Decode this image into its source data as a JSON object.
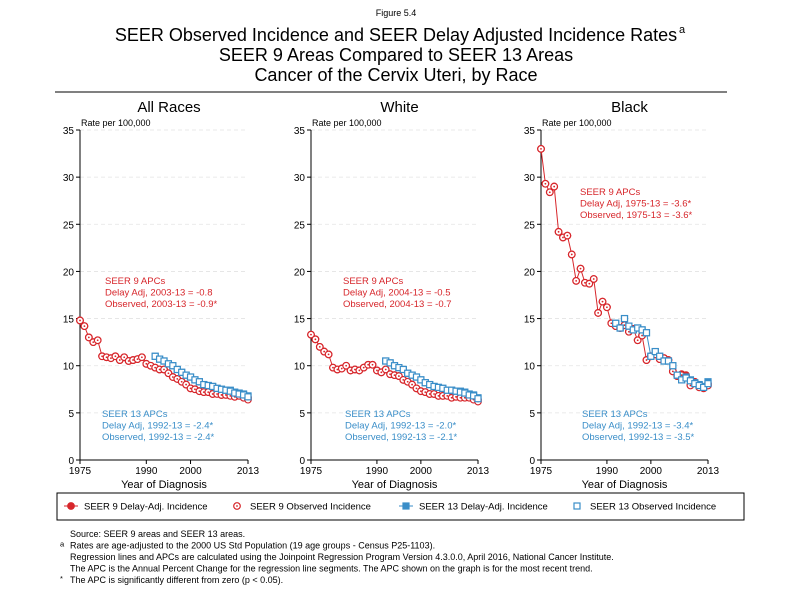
{
  "header": {
    "figure": "Figure 5.4",
    "title": [
      "SEER Observed Incidence and SEER Delay Adjusted Incidence Rates",
      "SEER 9 Areas Compared to SEER 13 Areas",
      "Cancer of the Cervix Uteri, by Race"
    ],
    "title_note": "a"
  },
  "chart_data": [
    {
      "type": "line",
      "title": "All Races",
      "y_label": "Rate per 100,000",
      "x_label": "Year of Diagnosis",
      "x": [
        1975,
        1976,
        1977,
        1978,
        1979,
        1980,
        1981,
        1982,
        1983,
        1984,
        1985,
        1986,
        1987,
        1988,
        1989,
        1990,
        1991,
        1992,
        1993,
        1994,
        1995,
        1996,
        1997,
        1998,
        1999,
        2000,
        2001,
        2002,
        2003,
        2004,
        2005,
        2006,
        2007,
        2008,
        2009,
        2010,
        2011,
        2012,
        2013
      ],
      "xlim": [
        1975,
        2013
      ],
      "xticks": [
        1975,
        1990,
        2000,
        2013
      ],
      "ylim": [
        0,
        35
      ],
      "yticks": [
        0,
        5,
        10,
        15,
        20,
        25,
        30,
        35
      ],
      "grid": true,
      "series": [
        {
          "name": "SEER 9 Delay-Adj. Incidence",
          "color": "#d7262b",
          "marker": "filled-circle",
          "line": true,
          "values": [
            14.8,
            14.2,
            13.0,
            12.5,
            12.7,
            11.0,
            10.9,
            10.8,
            11.0,
            10.6,
            10.9,
            10.5,
            10.6,
            10.7,
            10.9,
            10.2,
            10.0,
            9.8,
            9.6,
            9.6,
            9.2,
            8.8,
            8.6,
            8.3,
            8.0,
            7.6,
            7.5,
            7.3,
            7.2,
            7.2,
            7.0,
            7.1,
            6.9,
            7.0,
            6.9,
            6.8,
            6.9,
            6.7,
            6.6
          ]
        },
        {
          "name": "SEER 9 Observed Incidence",
          "color": "#d7262b",
          "marker": "open-circle",
          "line": false,
          "values": [
            14.8,
            14.2,
            13.0,
            12.5,
            12.7,
            11.0,
            10.9,
            10.8,
            11.0,
            10.6,
            10.9,
            10.5,
            10.6,
            10.7,
            10.9,
            10.2,
            10.0,
            9.8,
            9.6,
            9.6,
            9.2,
            8.8,
            8.6,
            8.3,
            8.0,
            7.6,
            7.5,
            7.3,
            7.2,
            7.2,
            7.0,
            7.0,
            6.9,
            6.9,
            6.8,
            6.7,
            6.8,
            6.6,
            6.4
          ]
        },
        {
          "name": "SEER 13 Delay-Adj. Incidence",
          "color": "#3a8ec8",
          "marker": "filled-square",
          "line": true,
          "values": [
            null,
            null,
            null,
            null,
            null,
            null,
            null,
            null,
            null,
            null,
            null,
            null,
            null,
            null,
            null,
            null,
            null,
            11.0,
            10.7,
            10.5,
            10.2,
            10.0,
            9.6,
            9.3,
            9.0,
            8.8,
            8.5,
            8.3,
            8.0,
            7.9,
            7.8,
            7.6,
            7.5,
            7.4,
            7.4,
            7.2,
            7.1,
            7.0,
            6.8
          ]
        },
        {
          "name": "SEER 13 Observed Incidence",
          "color": "#3a8ec8",
          "marker": "open-square",
          "line": false,
          "values": [
            null,
            null,
            null,
            null,
            null,
            null,
            null,
            null,
            null,
            null,
            null,
            null,
            null,
            null,
            null,
            null,
            null,
            11.0,
            10.7,
            10.5,
            10.2,
            10.0,
            9.6,
            9.3,
            9.0,
            8.8,
            8.5,
            8.3,
            8.0,
            7.9,
            7.8,
            7.6,
            7.5,
            7.4,
            7.3,
            7.1,
            7.0,
            6.9,
            6.7
          ]
        }
      ],
      "annotations": [
        {
          "color": "#d7262b",
          "lines": [
            "SEER 9 APCs",
            "Delay Adj, 2003-13 = -0.8",
            "Observed, 2003-13 = -0.9*"
          ]
        },
        {
          "color": "#3a8ec8",
          "lines": [
            "SEER 13 APCs",
            "Delay Adj, 1992-13 = -2.4*",
            "Observed, 1992-13 = -2.4*"
          ]
        }
      ]
    },
    {
      "type": "line",
      "title": "White",
      "y_label": "Rate per 100,000",
      "x_label": "Year of Diagnosis",
      "x": [
        1975,
        1976,
        1977,
        1978,
        1979,
        1980,
        1981,
        1982,
        1983,
        1984,
        1985,
        1986,
        1987,
        1988,
        1989,
        1990,
        1991,
        1992,
        1993,
        1994,
        1995,
        1996,
        1997,
        1998,
        1999,
        2000,
        2001,
        2002,
        2003,
        2004,
        2005,
        2006,
        2007,
        2008,
        2009,
        2010,
        2011,
        2012,
        2013
      ],
      "xlim": [
        1975,
        2013
      ],
      "xticks": [
        1975,
        1990,
        2000,
        2013
      ],
      "ylim": [
        0,
        35
      ],
      "yticks": [
        0,
        5,
        10,
        15,
        20,
        25,
        30,
        35
      ],
      "grid": true,
      "series": [
        {
          "name": "SEER 9 Delay-Adj. Incidence",
          "color": "#d7262b",
          "marker": "filled-circle",
          "line": true,
          "values": [
            13.3,
            12.8,
            12.0,
            11.5,
            11.2,
            9.8,
            9.6,
            9.7,
            10.0,
            9.5,
            9.6,
            9.5,
            9.8,
            10.1,
            10.1,
            9.5,
            9.3,
            9.6,
            9.1,
            9.0,
            8.9,
            8.5,
            8.3,
            8.0,
            7.6,
            7.3,
            7.2,
            7.0,
            7.0,
            6.8,
            6.8,
            6.9,
            6.6,
            6.8,
            6.7,
            6.7,
            6.7,
            6.5,
            6.4
          ]
        },
        {
          "name": "SEER 9 Observed Incidence",
          "color": "#d7262b",
          "marker": "open-circle",
          "line": false,
          "values": [
            13.3,
            12.8,
            12.0,
            11.5,
            11.2,
            9.8,
            9.6,
            9.7,
            10.0,
            9.5,
            9.6,
            9.5,
            9.8,
            10.1,
            10.1,
            9.5,
            9.3,
            9.6,
            9.1,
            9.0,
            8.9,
            8.5,
            8.3,
            8.0,
            7.6,
            7.3,
            7.2,
            7.0,
            7.0,
            6.8,
            6.8,
            6.8,
            6.6,
            6.7,
            6.6,
            6.6,
            6.6,
            6.4,
            6.2
          ]
        },
        {
          "name": "SEER 13 Delay-Adj. Incidence",
          "color": "#3a8ec8",
          "marker": "filled-square",
          "line": true,
          "values": [
            null,
            null,
            null,
            null,
            null,
            null,
            null,
            null,
            null,
            null,
            null,
            null,
            null,
            null,
            null,
            null,
            null,
            10.5,
            10.3,
            10.0,
            9.8,
            9.6,
            9.2,
            9.0,
            8.8,
            8.5,
            8.2,
            8.0,
            7.8,
            7.7,
            7.6,
            7.4,
            7.4,
            7.3,
            7.3,
            7.2,
            7.0,
            6.9,
            6.6
          ]
        },
        {
          "name": "SEER 13 Observed Incidence",
          "color": "#3a8ec8",
          "marker": "open-square",
          "line": false,
          "values": [
            null,
            null,
            null,
            null,
            null,
            null,
            null,
            null,
            null,
            null,
            null,
            null,
            null,
            null,
            null,
            null,
            null,
            10.5,
            10.3,
            10.0,
            9.8,
            9.6,
            9.2,
            9.0,
            8.8,
            8.5,
            8.2,
            8.0,
            7.8,
            7.7,
            7.6,
            7.4,
            7.4,
            7.3,
            7.2,
            7.1,
            6.9,
            6.8,
            6.5
          ]
        }
      ],
      "annotations": [
        {
          "color": "#d7262b",
          "lines": [
            "SEER 9 APCs",
            "Delay Adj, 2004-13 = -0.5",
            "Observed, 2004-13 = -0.7"
          ]
        },
        {
          "color": "#3a8ec8",
          "lines": [
            "SEER 13 APCs",
            "Delay Adj, 1992-13 = -2.0*",
            "Observed, 1992-13 = -2.1*"
          ]
        }
      ]
    },
    {
      "type": "line",
      "title": "Black",
      "y_label": "Rate per 100,000",
      "x_label": "Year of Diagnosis",
      "x": [
        1975,
        1976,
        1977,
        1978,
        1979,
        1980,
        1981,
        1982,
        1983,
        1984,
        1985,
        1986,
        1987,
        1988,
        1989,
        1990,
        1991,
        1992,
        1993,
        1994,
        1995,
        1996,
        1997,
        1998,
        1999,
        2000,
        2001,
        2002,
        2003,
        2004,
        2005,
        2006,
        2007,
        2008,
        2009,
        2010,
        2011,
        2012,
        2013
      ],
      "xlim": [
        1975,
        2013
      ],
      "xticks": [
        1975,
        1990,
        2000,
        2013
      ],
      "ylim": [
        0,
        35
      ],
      "yticks": [
        0,
        5,
        10,
        15,
        20,
        25,
        30,
        35
      ],
      "grid": true,
      "series": [
        {
          "name": "SEER 9 Delay-Adj. Incidence",
          "color": "#d7262b",
          "marker": "filled-circle",
          "line": true,
          "values": [
            33.0,
            29.3,
            28.4,
            29.0,
            24.2,
            23.6,
            23.8,
            21.8,
            19.0,
            20.3,
            18.8,
            18.7,
            19.2,
            15.6,
            16.8,
            16.2,
            14.5,
            14.2,
            14.0,
            14.3,
            13.6,
            13.9,
            12.7,
            13.2,
            10.6,
            11.0,
            11.2,
            10.7,
            10.8,
            10.6,
            9.4,
            8.9,
            9.1,
            9.0,
            8.0,
            8.3,
            7.8,
            7.7,
            8.1
          ]
        },
        {
          "name": "SEER 9 Observed Incidence",
          "color": "#d7262b",
          "marker": "open-circle",
          "line": false,
          "values": [
            33.0,
            29.3,
            28.4,
            29.0,
            24.2,
            23.6,
            23.8,
            21.8,
            19.0,
            20.3,
            18.8,
            18.7,
            19.2,
            15.6,
            16.8,
            16.2,
            14.5,
            14.2,
            14.0,
            14.3,
            13.6,
            13.9,
            12.7,
            13.2,
            10.6,
            11.0,
            11.2,
            10.7,
            10.8,
            10.6,
            9.4,
            8.9,
            9.0,
            8.9,
            7.9,
            8.2,
            7.7,
            7.6,
            7.9
          ]
        },
        {
          "name": "SEER 13 Delay-Adj. Incidence",
          "color": "#3a8ec8",
          "marker": "filled-square",
          "line": true,
          "values": [
            null,
            null,
            null,
            null,
            null,
            null,
            null,
            null,
            null,
            null,
            null,
            null,
            null,
            null,
            null,
            null,
            null,
            14.5,
            14.0,
            15.0,
            14.2,
            13.8,
            14.0,
            13.8,
            13.5,
            11.0,
            11.5,
            11.0,
            10.5,
            10.5,
            10.0,
            9.0,
            8.5,
            8.8,
            8.5,
            8.2,
            8.0,
            7.8,
            8.3
          ]
        },
        {
          "name": "SEER 13 Observed Incidence",
          "color": "#3a8ec8",
          "marker": "open-square",
          "line": false,
          "values": [
            null,
            null,
            null,
            null,
            null,
            null,
            null,
            null,
            null,
            null,
            null,
            null,
            null,
            null,
            null,
            null,
            null,
            14.5,
            14.0,
            15.0,
            14.2,
            13.8,
            14.0,
            13.8,
            13.5,
            11.0,
            11.5,
            11.0,
            10.5,
            10.5,
            10.0,
            9.0,
            8.5,
            8.7,
            8.4,
            8.1,
            7.9,
            7.7,
            8.1
          ]
        }
      ],
      "annotations": [
        {
          "color": "#d7262b",
          "lines": [
            "SEER 9 APCs",
            "Delay Adj, 1975-13 = -3.6*",
            "Observed, 1975-13 = -3.6*"
          ]
        },
        {
          "color": "#3a8ec8",
          "lines": [
            "SEER 13 APCs",
            "Delay Adj, 1992-13 = -3.4*",
            "Observed, 1992-13 = -3.5*"
          ]
        }
      ]
    }
  ],
  "footnotes": [
    {
      "text": "Source: SEER 9 areas and SEER 13 areas."
    },
    {
      "mark": "a",
      "text": "Rates are age-adjusted to the 2000 US Std Population (19 age groups - Census P25-1103)."
    },
    {
      "text": "Regression lines and APCs are calculated using the Joinpoint Regression Program Version 4.3.0.0, April 2016, National Cancer Institute."
    },
    {
      "text": "The APC is the Annual Percent Change for the regression line segments. The APC shown on the graph is for the most recent trend."
    },
    {
      "mark": "*",
      "text": "The APC is significantly different from zero (p < 0.05)."
    }
  ]
}
